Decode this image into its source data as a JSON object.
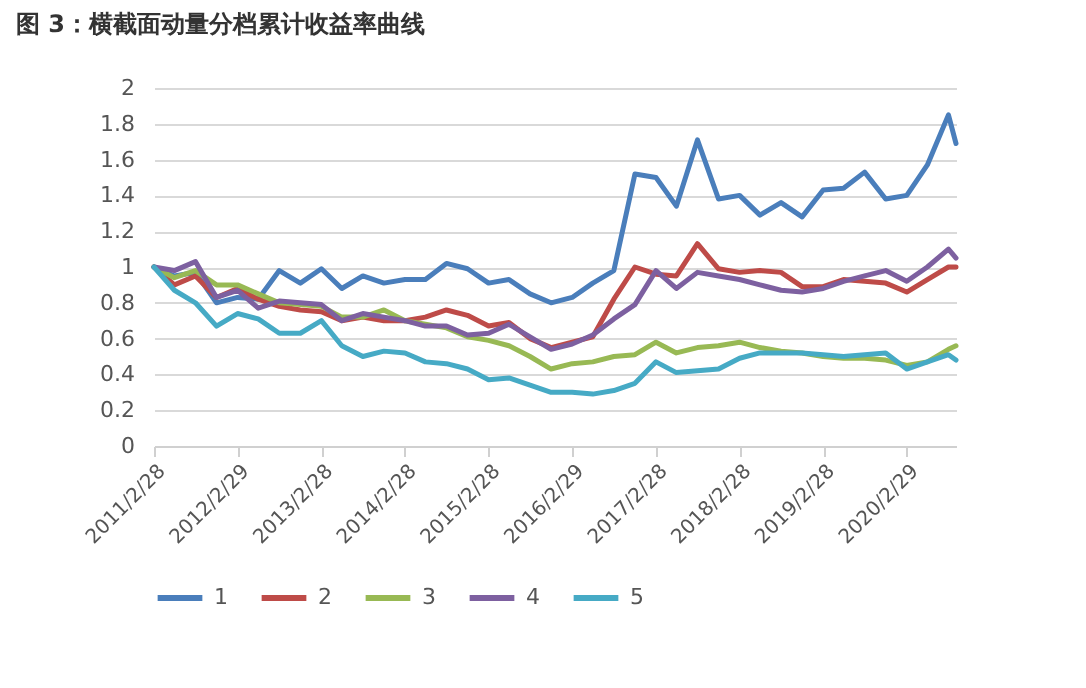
{
  "chart_data": {
    "type": "line",
    "title": "图 3：横截面动量分档累计收益率曲线",
    "x": [
      "2011-02-28",
      "2011-05-28",
      "2011-08-28",
      "2011-11-28",
      "2012-02-28",
      "2012-05-28",
      "2012-08-28",
      "2012-11-28",
      "2013-02-28",
      "2013-05-28",
      "2013-08-28",
      "2013-11-28",
      "2014-02-28",
      "2014-05-28",
      "2014-08-28",
      "2014-11-28",
      "2015-02-28",
      "2015-05-28",
      "2015-08-28",
      "2015-11-28",
      "2016-02-28",
      "2016-05-28",
      "2016-08-28",
      "2016-11-28",
      "2017-02-28",
      "2017-05-28",
      "2017-08-28",
      "2017-11-28",
      "2018-02-28",
      "2018-05-28",
      "2018-08-28",
      "2018-11-28",
      "2019-02-28",
      "2019-05-28",
      "2019-08-28",
      "2019-11-28",
      "2020-02-28",
      "2020-05-28",
      "2020-08-28",
      "2020-09-30"
    ],
    "series": [
      {
        "name": "1",
        "color": "#4a7ebb",
        "values": [
          1.0,
          0.95,
          0.97,
          0.8,
          0.83,
          0.82,
          0.98,
          0.91,
          0.99,
          0.88,
          0.95,
          0.91,
          0.93,
          0.93,
          1.02,
          0.99,
          0.91,
          0.93,
          0.85,
          0.8,
          0.83,
          0.91,
          0.98,
          1.52,
          1.5,
          1.34,
          1.71,
          1.38,
          1.4,
          1.29,
          1.36,
          1.28,
          1.43,
          1.44,
          1.53,
          1.38,
          1.4,
          1.57,
          1.85,
          1.69
        ]
      },
      {
        "name": "2",
        "color": "#be4b48",
        "values": [
          1.0,
          0.9,
          0.95,
          0.83,
          0.88,
          0.82,
          0.78,
          0.76,
          0.75,
          0.7,
          0.72,
          0.7,
          0.7,
          0.72,
          0.76,
          0.73,
          0.67,
          0.69,
          0.6,
          0.55,
          0.58,
          0.61,
          0.82,
          1.0,
          0.96,
          0.95,
          1.13,
          0.99,
          0.97,
          0.98,
          0.97,
          0.89,
          0.89,
          0.93,
          0.92,
          0.91,
          0.86,
          0.93,
          1.0,
          1.0
        ]
      },
      {
        "name": "3",
        "color": "#98b954",
        "values": [
          1.0,
          0.94,
          0.98,
          0.9,
          0.9,
          0.85,
          0.8,
          0.79,
          0.78,
          0.72,
          0.72,
          0.76,
          0.7,
          0.68,
          0.66,
          0.61,
          0.59,
          0.56,
          0.5,
          0.43,
          0.46,
          0.47,
          0.5,
          0.51,
          0.58,
          0.52,
          0.55,
          0.56,
          0.58,
          0.55,
          0.53,
          0.52,
          0.5,
          0.49,
          0.49,
          0.48,
          0.45,
          0.47,
          0.54,
          0.56
        ]
      },
      {
        "name": "4",
        "color": "#7d60a0",
        "values": [
          1.0,
          0.98,
          1.03,
          0.83,
          0.87,
          0.77,
          0.81,
          0.8,
          0.79,
          0.7,
          0.74,
          0.72,
          0.7,
          0.67,
          0.67,
          0.62,
          0.63,
          0.68,
          0.61,
          0.54,
          0.57,
          0.62,
          0.71,
          0.79,
          0.98,
          0.88,
          0.97,
          0.95,
          0.93,
          0.9,
          0.87,
          0.86,
          0.88,
          0.92,
          0.95,
          0.98,
          0.92,
          1.0,
          1.1,
          1.05
        ]
      },
      {
        "name": "5",
        "color": "#46aac5",
        "values": [
          1.0,
          0.87,
          0.8,
          0.67,
          0.74,
          0.71,
          0.63,
          0.63,
          0.7,
          0.56,
          0.5,
          0.53,
          0.52,
          0.47,
          0.46,
          0.43,
          0.37,
          0.38,
          0.34,
          0.3,
          0.3,
          0.29,
          0.31,
          0.35,
          0.47,
          0.41,
          0.42,
          0.43,
          0.49,
          0.52,
          0.52,
          0.52,
          0.51,
          0.5,
          0.51,
          0.52,
          0.43,
          0.47,
          0.51,
          0.48
        ]
      }
    ],
    "xlim": [
      "2011-02-28",
      "2020-09-30"
    ],
    "xticks": [
      {
        "value": "2011-02-28",
        "label": "2011/2/28"
      },
      {
        "value": "2012-02-29",
        "label": "2012/2/29"
      },
      {
        "value": "2013-02-28",
        "label": "2013/2/28"
      },
      {
        "value": "2014-02-28",
        "label": "2014/2/28"
      },
      {
        "value": "2015-02-28",
        "label": "2015/2/28"
      },
      {
        "value": "2016-02-29",
        "label": "2016/2/29"
      },
      {
        "value": "2017-02-28",
        "label": "2017/2/28"
      },
      {
        "value": "2018-02-28",
        "label": "2018/2/28"
      },
      {
        "value": "2019-02-28",
        "label": "2019/2/28"
      },
      {
        "value": "2020-02-29",
        "label": "2020/2/29"
      }
    ],
    "ylim": [
      0,
      2
    ],
    "yticks": [
      0,
      0.2,
      0.4,
      0.6,
      0.8,
      1,
      1.2,
      1.4,
      1.6,
      1.8,
      2
    ],
    "grid": "y",
    "legend": "bottom"
  }
}
